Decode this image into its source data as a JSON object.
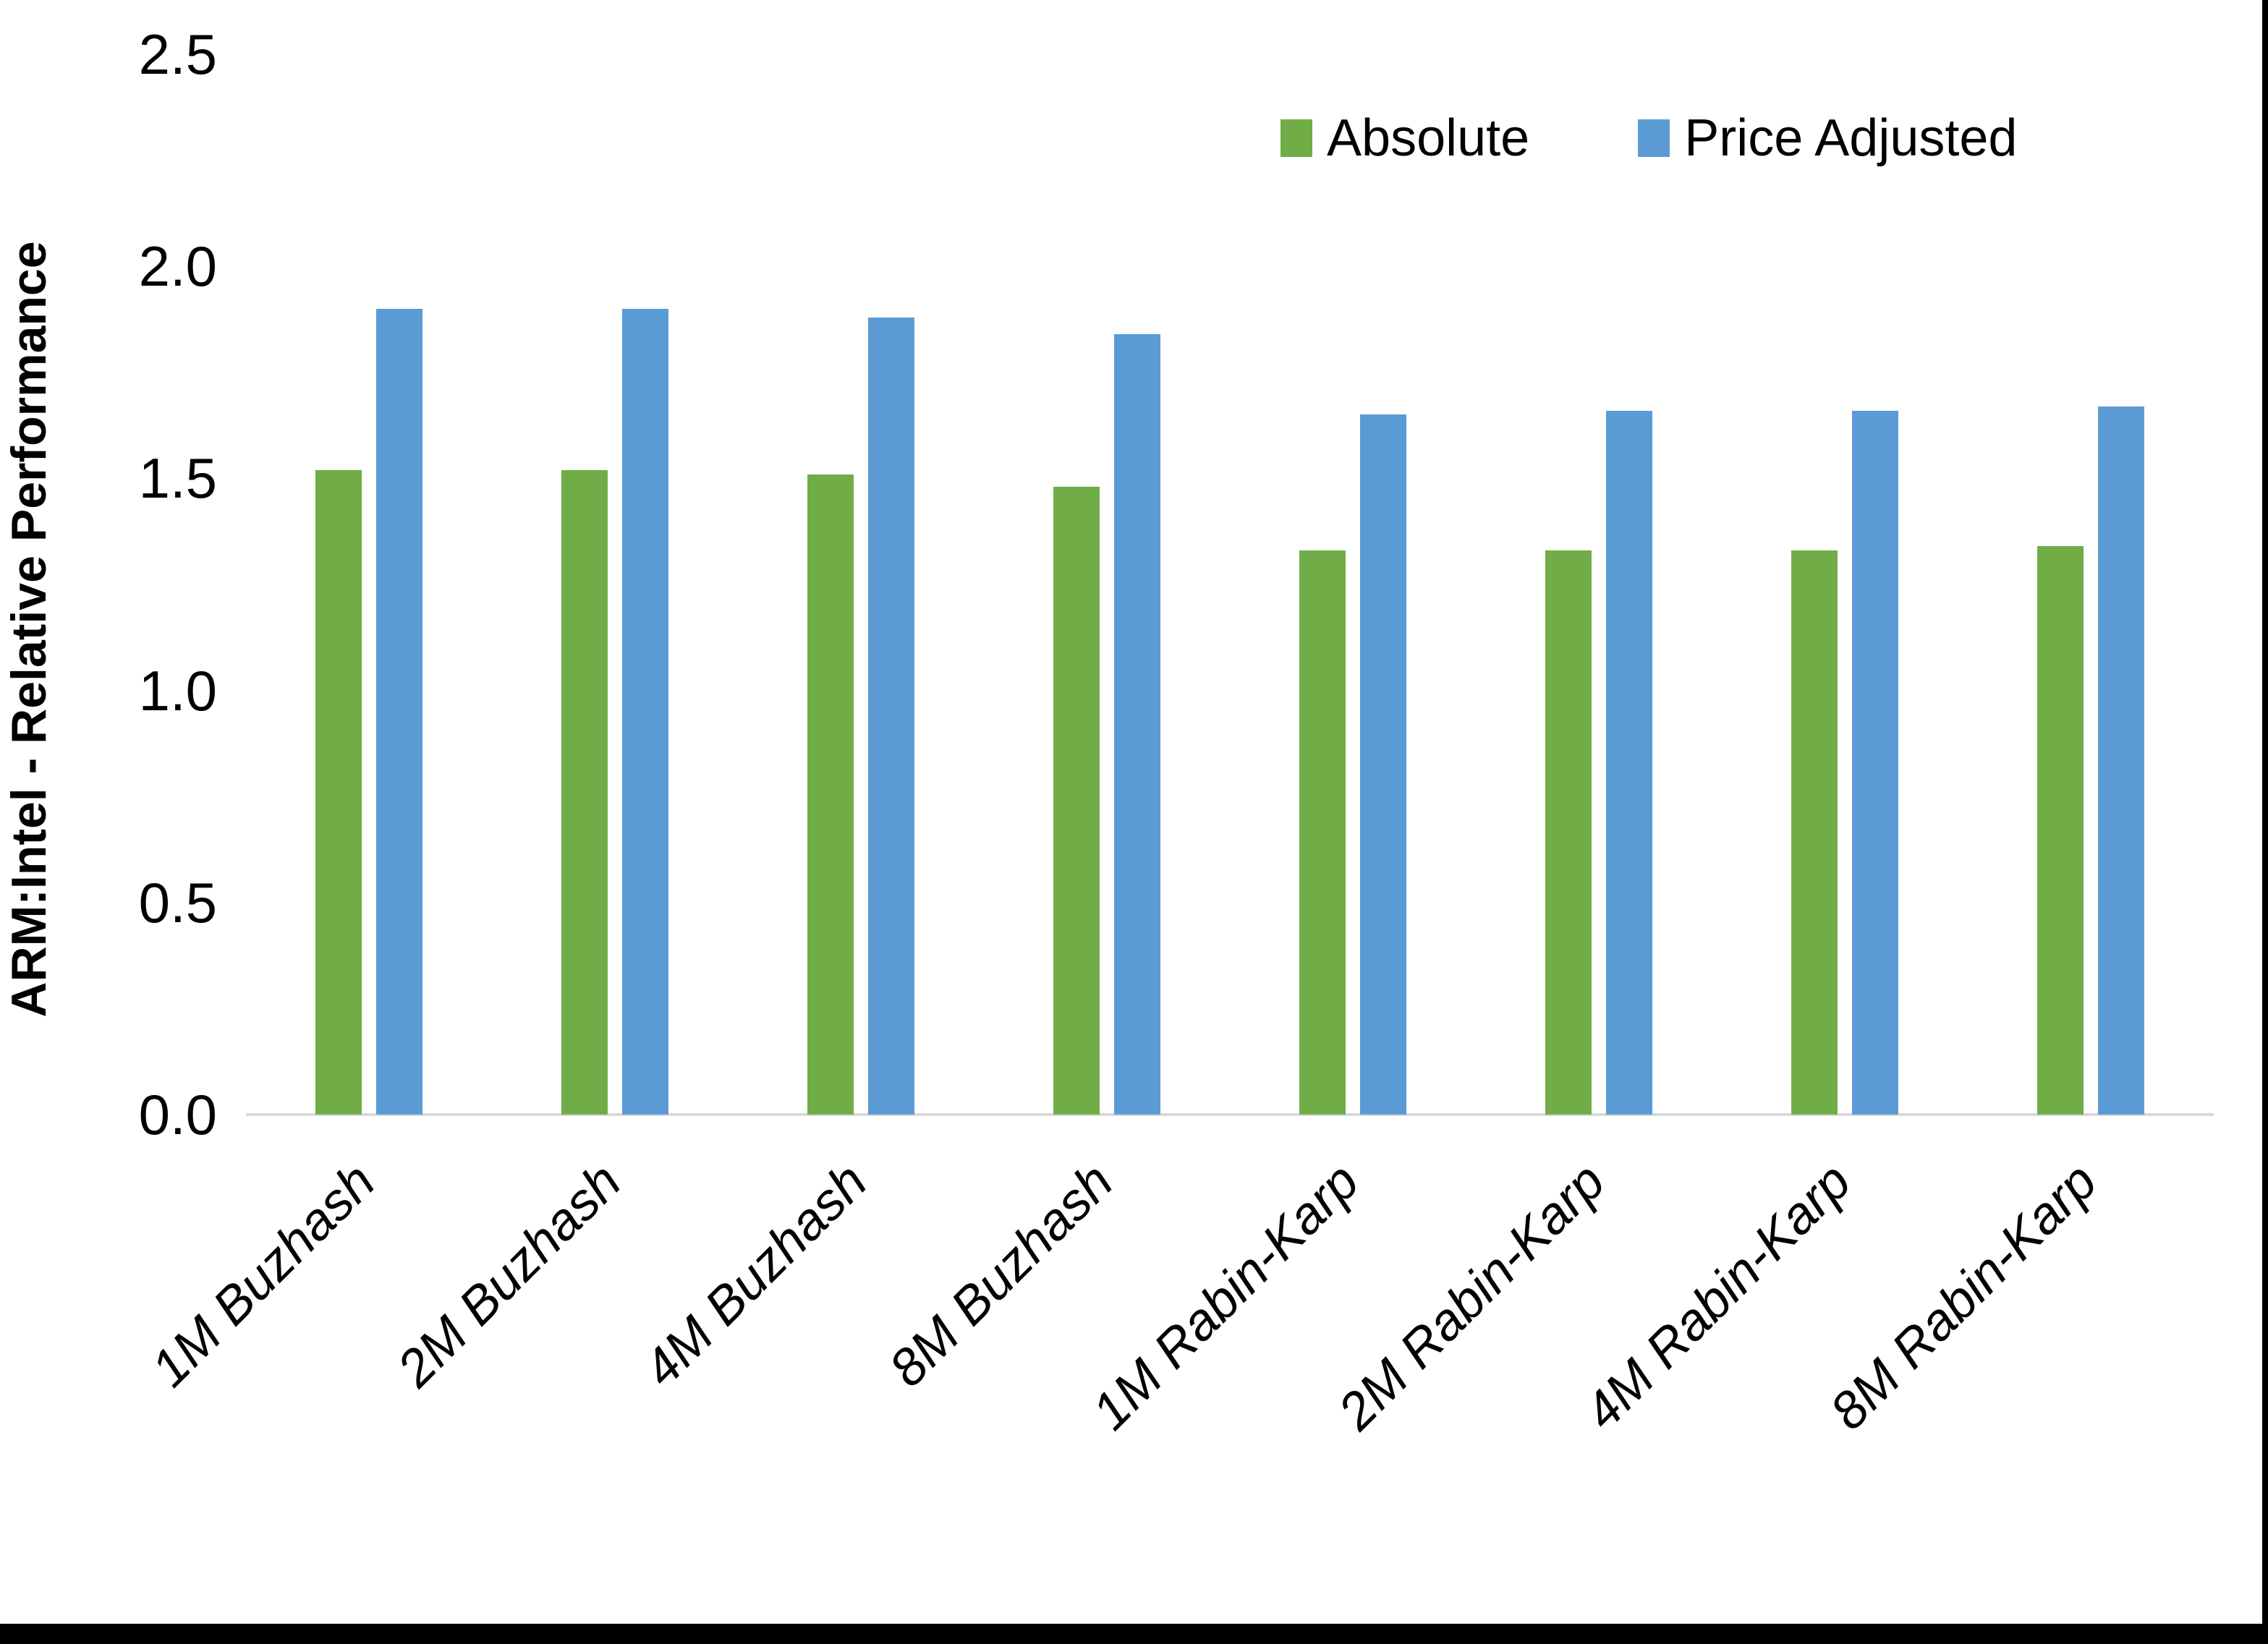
{
  "figure": {
    "background_color": "#FFFFFF",
    "frame_color": "#000000"
  },
  "chart_data": {
    "type": "bar",
    "title": "",
    "xlabel": "",
    "ylabel": "ARM:Intel - Relative Performance",
    "ylim": [
      0,
      2.5
    ],
    "y_tick_labels": [
      "0.0",
      "0.5",
      "1.0",
      "1.5",
      "2.0",
      "2.5"
    ],
    "grid": false,
    "legend_position": "top-right",
    "axis_line_color": "#D9D9D9",
    "categories": [
      "1M Buzhash",
      "2M Buzhash",
      "4M Buzhash",
      "8M Buzhash",
      "1M Rabin-Karp",
      "2M Rabin-Karp",
      "4M Rabin-Karp",
      "8M Rabin-Karp"
    ],
    "series": [
      {
        "name": "Absolute",
        "color": "#70AD47",
        "values": [
          1.52,
          1.52,
          1.51,
          1.48,
          1.33,
          1.33,
          1.33,
          1.34
        ]
      },
      {
        "name": "Price Adjusted",
        "color": "#5B9BD5",
        "values": [
          1.9,
          1.9,
          1.88,
          1.84,
          1.65,
          1.66,
          1.66,
          1.67
        ]
      }
    ]
  },
  "legend": {
    "items": [
      {
        "label": "Absolute",
        "color": "#70AD47"
      },
      {
        "label": "Price Adjusted",
        "color": "#5B9BD5"
      }
    ]
  }
}
